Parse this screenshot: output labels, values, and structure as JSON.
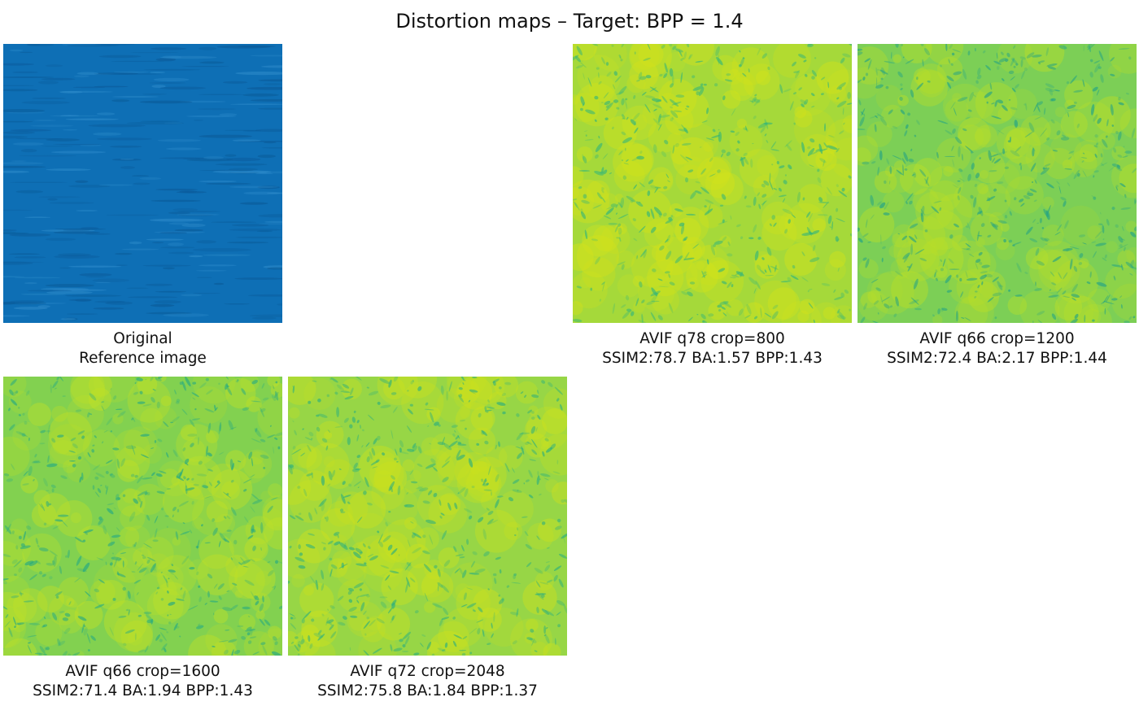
{
  "figure": {
    "title": "Distortion maps – Target: BPP = 1.4"
  },
  "panels": [
    {
      "line1": "Original",
      "line2": "Reference image",
      "kind": "photo",
      "colors": {
        "base": "#0e6fb5",
        "dark": "#0a5a98",
        "light": "#2f8ccb"
      }
    },
    {
      "line1": "AVIF q78 crop=800",
      "line2": "SSIM2:78.7 BA:1.57 BPP:1.43",
      "kind": "map",
      "colors": {
        "base": "#a5d93a",
        "dark": "#2fb47c",
        "light": "#d2e21b"
      }
    },
    {
      "line1": "AVIF q66 crop=1200",
      "line2": "SSIM2:72.4 BA:2.17 BPP:1.44",
      "kind": "map",
      "colors": {
        "base": "#7ccf56",
        "dark": "#1fa187",
        "light": "#b8de29"
      }
    },
    {
      "line1": "AVIF q66 crop=1600",
      "line2": "SSIM2:71.4 BA:1.94 BPP:1.43",
      "kind": "map",
      "colors": {
        "base": "#82d150",
        "dark": "#22a884",
        "light": "#bfe027"
      }
    },
    {
      "line1": "AVIF q72 crop=2048",
      "line2": "SSIM2:75.8 BA:1.84 BPP:1.37",
      "kind": "map",
      "colors": {
        "base": "#97d646",
        "dark": "#28ae80",
        "light": "#cbe11e"
      }
    }
  ]
}
